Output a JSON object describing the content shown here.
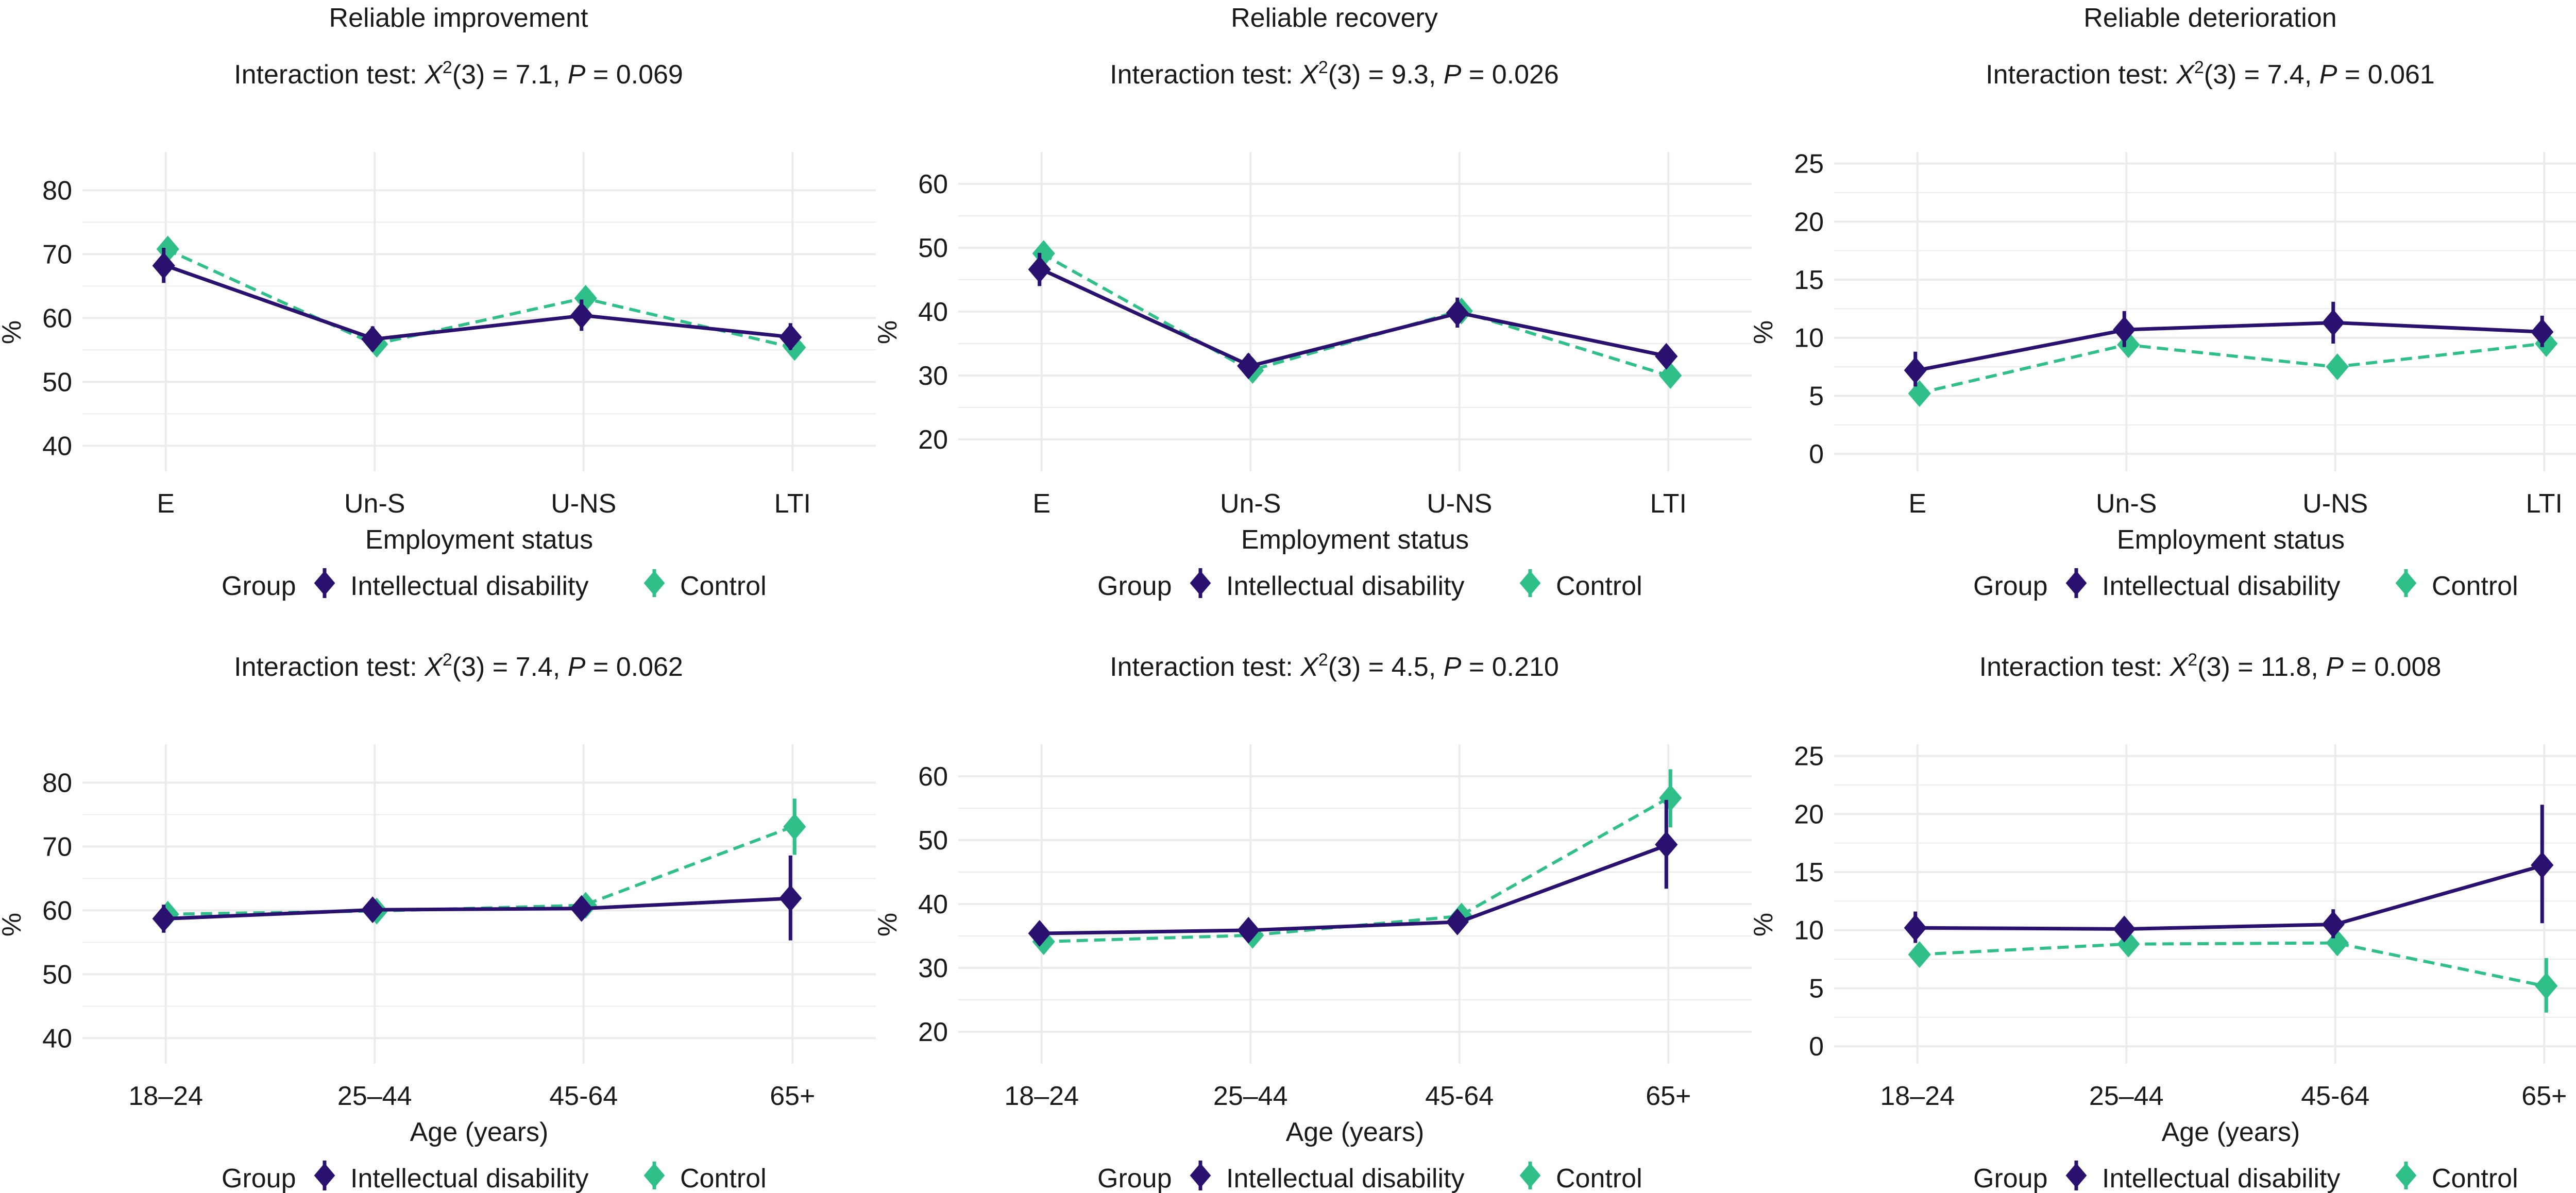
{
  "colors": {
    "intellectual_disability": "#2a1170",
    "control": "#2fc08a",
    "grid": "#ebebeb",
    "text": "#1a1a1a"
  },
  "chart_data": [
    {
      "type": "line",
      "title": "Reliable improvement",
      "subtitle_prefix": "Interaction test: ",
      "subtitle_stat": "X",
      "subtitle_sup": "2",
      "subtitle_rest": "(3) = 7.1, ",
      "subtitle_p": "P",
      "subtitle_value": " = 0.069",
      "xlabel": "Employment status",
      "ylabel": "%",
      "categories": [
        "E",
        "Un-S",
        "U-NS",
        "LTI"
      ],
      "ylim": [
        36,
        86
      ],
      "yticks": [
        40,
        50,
        60,
        70,
        80
      ],
      "legend_title": "Group",
      "legend": [
        "Intellectual disability",
        "Control"
      ],
      "series": [
        {
          "name": "Intellectual disability",
          "values": [
            68.2,
            56.7,
            60.4,
            57.0
          ],
          "lower": [
            65.5,
            54.8,
            58.0,
            55.0
          ],
          "upper": [
            71.0,
            58.7,
            62.9,
            59.2
          ]
        },
        {
          "name": "Control",
          "values": [
            70.8,
            55.9,
            63.1,
            55.4
          ],
          "lower": [
            69.7,
            55.0,
            62.0,
            54.6
          ],
          "upper": [
            72.0,
            56.9,
            64.3,
            56.3
          ]
        }
      ]
    },
    {
      "type": "line",
      "title": "Reliable recovery",
      "subtitle_prefix": "Interaction test: ",
      "subtitle_stat": "X",
      "subtitle_sup": "2",
      "subtitle_rest": "(3) = 9.3, ",
      "subtitle_p": "P",
      "subtitle_value": " = 0.026",
      "xlabel": "Employment status",
      "ylabel": "%",
      "categories": [
        "E",
        "Un-S",
        "U-NS",
        "LTI"
      ],
      "ylim": [
        15,
        65
      ],
      "yticks": [
        20,
        30,
        40,
        50,
        60
      ],
      "legend_title": "Group",
      "legend": [
        "Intellectual disability",
        "Control"
      ],
      "series": [
        {
          "name": "Intellectual disability",
          "values": [
            46.6,
            31.5,
            39.8,
            33.0
          ],
          "lower": [
            44.0,
            29.7,
            37.5,
            31.4
          ],
          "upper": [
            49.2,
            33.4,
            42.2,
            34.8
          ]
        },
        {
          "name": "Control",
          "values": [
            49.1,
            30.8,
            40.1,
            30.0
          ],
          "lower": [
            47.9,
            30.0,
            39.0,
            29.4
          ],
          "upper": [
            50.3,
            31.6,
            41.2,
            30.7
          ]
        }
      ]
    },
    {
      "type": "line",
      "title": "Reliable deterioration",
      "subtitle_prefix": "Interaction test: ",
      "subtitle_stat": "X",
      "subtitle_sup": "2",
      "subtitle_rest": "(3) = 7.4, ",
      "subtitle_p": "P",
      "subtitle_value": " = 0.061",
      "xlabel": "Employment status",
      "ylabel": "%",
      "categories": [
        "E",
        "Un-S",
        "U-NS",
        "LTI"
      ],
      "ylim": [
        -1.5,
        26
      ],
      "yticks": [
        0,
        5,
        10,
        15,
        20,
        25
      ],
      "legend_title": "Group",
      "legend": [
        "Intellectual disability",
        "Control"
      ],
      "series": [
        {
          "name": "Intellectual disability",
          "values": [
            7.2,
            10.7,
            11.3,
            10.5
          ],
          "lower": [
            5.8,
            9.2,
            9.5,
            9.2
          ],
          "upper": [
            8.8,
            12.3,
            13.1,
            11.9
          ]
        },
        {
          "name": "Control",
          "values": [
            5.2,
            9.4,
            7.5,
            9.5
          ],
          "lower": [
            4.6,
            8.7,
            6.7,
            8.8
          ],
          "upper": [
            5.8,
            10.1,
            8.3,
            10.2
          ]
        }
      ]
    },
    {
      "type": "line",
      "title": "",
      "subtitle_prefix": "Interaction test: ",
      "subtitle_stat": "X",
      "subtitle_sup": "2",
      "subtitle_rest": "(3) = 7.4, ",
      "subtitle_p": "P",
      "subtitle_value": " = 0.062",
      "xlabel": "Age (years)",
      "ylabel": "%",
      "categories": [
        "18–24",
        "25–44",
        "45-64",
        "65+"
      ],
      "ylim": [
        36,
        86
      ],
      "yticks": [
        40,
        50,
        60,
        70,
        80
      ],
      "legend_title": "Group",
      "legend": [
        "Intellectual disability",
        "Control"
      ],
      "series": [
        {
          "name": "Intellectual disability",
          "values": [
            58.7,
            60.1,
            60.3,
            61.9
          ],
          "lower": [
            56.5,
            58.7,
            58.5,
            55.3
          ],
          "upper": [
            60.9,
            61.5,
            62.1,
            68.6
          ]
        },
        {
          "name": "Control",
          "values": [
            59.4,
            59.9,
            60.8,
            73.1
          ],
          "lower": [
            58.6,
            59.3,
            60.2,
            68.7
          ],
          "upper": [
            60.2,
            60.5,
            61.5,
            77.5
          ]
        }
      ]
    },
    {
      "type": "line",
      "title": "",
      "subtitle_prefix": "Interaction test: ",
      "subtitle_stat": "X",
      "subtitle_sup": "2",
      "subtitle_rest": "(3) = 4.5, ",
      "subtitle_p": "P",
      "subtitle_value": " = 0.210",
      "xlabel": "Age (years)",
      "ylabel": "%",
      "categories": [
        "18–24",
        "25–44",
        "45-64",
        "65+"
      ],
      "ylim": [
        15,
        65
      ],
      "yticks": [
        20,
        30,
        40,
        50,
        60
      ],
      "legend_title": "Group",
      "legend": [
        "Intellectual disability",
        "Control"
      ],
      "series": [
        {
          "name": "Intellectual disability",
          "values": [
            35.4,
            35.9,
            37.2,
            49.3
          ],
          "lower": [
            33.6,
            34.8,
            35.7,
            42.4
          ],
          "upper": [
            37.2,
            37.0,
            38.8,
            56.3
          ]
        },
        {
          "name": "Control",
          "values": [
            34.1,
            35.1,
            38.1,
            56.6
          ],
          "lower": [
            33.3,
            34.6,
            37.5,
            52.0
          ],
          "upper": [
            34.9,
            35.6,
            38.7,
            61.1
          ]
        }
      ]
    },
    {
      "type": "line",
      "title": "",
      "subtitle_prefix": "Interaction test: ",
      "subtitle_stat": "X",
      "subtitle_sup": "2",
      "subtitle_rest": "(3) = 11.8, ",
      "subtitle_p": "P",
      "subtitle_value": " = 0.008",
      "xlabel": "Age (years)",
      "ylabel": "%",
      "categories": [
        "18–24",
        "25–44",
        "45-64",
        "65+"
      ],
      "ylim": [
        -1.5,
        26
      ],
      "yticks": [
        0,
        5,
        10,
        15,
        20,
        25
      ],
      "legend_title": "Group",
      "legend": [
        "Intellectual disability",
        "Control"
      ],
      "series": [
        {
          "name": "Intellectual disability",
          "values": [
            10.2,
            10.1,
            10.5,
            15.6
          ],
          "lower": [
            8.9,
            9.3,
            9.3,
            10.6
          ],
          "upper": [
            11.6,
            10.9,
            11.8,
            20.8
          ]
        },
        {
          "name": "Control",
          "values": [
            7.9,
            8.8,
            8.9,
            5.2
          ],
          "lower": [
            7.4,
            8.4,
            8.4,
            2.9
          ],
          "upper": [
            8.4,
            9.2,
            9.4,
            7.6
          ]
        }
      ]
    }
  ]
}
